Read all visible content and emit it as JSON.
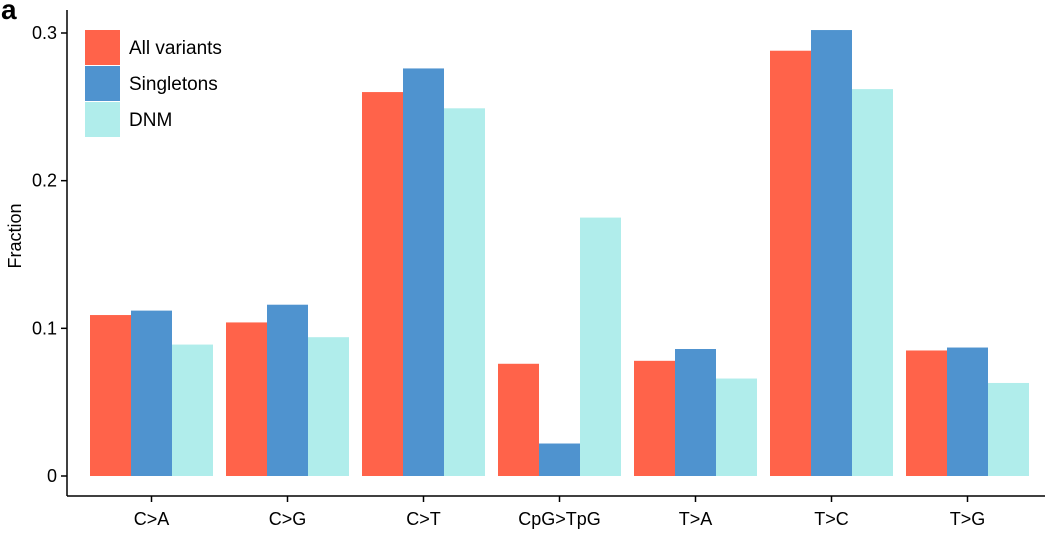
{
  "panel_label": "a",
  "chart_data": {
    "type": "bar",
    "title": "",
    "xlabel": "",
    "ylabel": "Fraction",
    "categories": [
      "C>A",
      "C>G",
      "C>T",
      "CpG>TpG",
      "T>A",
      "T>C",
      "T>G"
    ],
    "ylim": [
      0,
      0.31
    ],
    "yticks": [
      0,
      0.1,
      0.2,
      0.3
    ],
    "ytick_labels": [
      "0",
      "0.1",
      "0.2",
      "0.3"
    ],
    "grid": false,
    "legend_position": "top-left",
    "series": [
      {
        "name": "All variants",
        "color": "#FF634A",
        "values": [
          0.109,
          0.104,
          0.26,
          0.076,
          0.078,
          0.288,
          0.085
        ]
      },
      {
        "name": "Singletons",
        "color": "#4F93CF",
        "values": [
          0.112,
          0.116,
          0.276,
          0.022,
          0.086,
          0.302,
          0.087
        ]
      },
      {
        "name": "DNM",
        "color": "#B0EDEB",
        "values": [
          0.089,
          0.094,
          0.249,
          0.175,
          0.066,
          0.262,
          0.063
        ]
      }
    ]
  }
}
